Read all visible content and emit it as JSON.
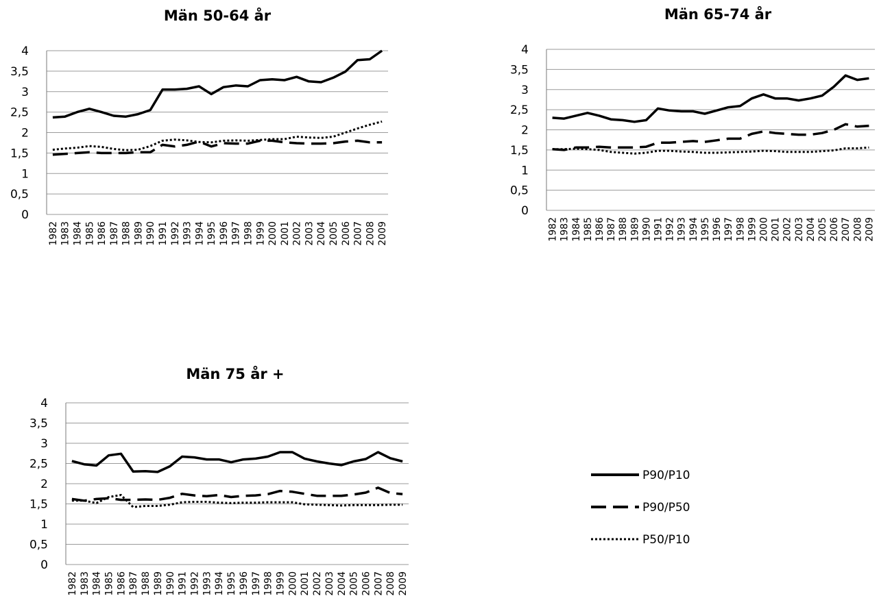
{
  "chart_data": [
    {
      "type": "line",
      "title": "Män 50-64 år",
      "x": [
        "1982",
        "1983",
        "1984",
        "1985",
        "1986",
        "1987",
        "1988",
        "1989",
        "1990",
        "1991",
        "1992",
        "1993",
        "1994",
        "1995",
        "1996",
        "1997",
        "1998",
        "1999",
        "2000",
        "2001",
        "2002",
        "2003",
        "2004",
        "2005",
        "2006",
        "2007",
        "2008",
        "2009"
      ],
      "y_ticks": [
        "0",
        "0,5",
        "1",
        "1,5",
        "2",
        "2,5",
        "3",
        "3,5",
        "4"
      ],
      "ylim": [
        0,
        4
      ],
      "grid": true,
      "series": [
        {
          "name": "P90/P10",
          "values": [
            2.37,
            2.39,
            2.5,
            2.58,
            2.5,
            2.41,
            2.39,
            2.45,
            2.55,
            3.05,
            3.05,
            3.07,
            3.13,
            2.94,
            3.11,
            3.15,
            3.13,
            3.28,
            3.3,
            3.28,
            3.36,
            3.25,
            3.23,
            3.34,
            3.49,
            3.77,
            3.79,
            4.0
          ]
        },
        {
          "name": "P90/P50",
          "values": [
            1.46,
            1.48,
            1.5,
            1.52,
            1.5,
            1.5,
            1.5,
            1.52,
            1.52,
            1.7,
            1.66,
            1.7,
            1.78,
            1.66,
            1.74,
            1.73,
            1.73,
            1.8,
            1.8,
            1.76,
            1.74,
            1.73,
            1.73,
            1.74,
            1.78,
            1.8,
            1.76,
            1.76
          ]
        },
        {
          "name": "P50/P10",
          "values": [
            1.58,
            1.61,
            1.63,
            1.67,
            1.65,
            1.6,
            1.57,
            1.58,
            1.67,
            1.8,
            1.83,
            1.81,
            1.77,
            1.76,
            1.8,
            1.81,
            1.8,
            1.82,
            1.84,
            1.84,
            1.9,
            1.88,
            1.87,
            1.9,
            2.0,
            2.1,
            2.19,
            2.27
          ]
        }
      ]
    },
    {
      "type": "line",
      "title": "Män 65-74 år",
      "x": [
        "1982",
        "1983",
        "1984",
        "1985",
        "1986",
        "1987",
        "1988",
        "1989",
        "1990",
        "1991",
        "1992",
        "1993",
        "1994",
        "1995",
        "1996",
        "1997",
        "1998",
        "1999",
        "2000",
        "2001",
        "2002",
        "2003",
        "2004",
        "2005",
        "2006",
        "2007",
        "2008",
        "2009"
      ],
      "y_ticks": [
        "0",
        "0,5",
        "1",
        "1,5",
        "2",
        "2,5",
        "3",
        "3,5",
        "4"
      ],
      "ylim": [
        0,
        4
      ],
      "grid": true,
      "series": [
        {
          "name": "P90/P10",
          "values": [
            2.3,
            2.28,
            2.35,
            2.42,
            2.35,
            2.26,
            2.24,
            2.2,
            2.24,
            2.53,
            2.48,
            2.46,
            2.46,
            2.4,
            2.48,
            2.56,
            2.59,
            2.78,
            2.88,
            2.78,
            2.78,
            2.73,
            2.78,
            2.85,
            3.07,
            3.35,
            3.24,
            3.28
          ]
        },
        {
          "name": "P90/P50",
          "values": [
            1.52,
            1.5,
            1.56,
            1.56,
            1.58,
            1.56,
            1.56,
            1.56,
            1.58,
            1.68,
            1.68,
            1.7,
            1.72,
            1.7,
            1.74,
            1.78,
            1.78,
            1.9,
            1.96,
            1.92,
            1.9,
            1.88,
            1.88,
            1.92,
            2.0,
            2.14,
            2.08,
            2.1
          ]
        },
        {
          "name": "P50/P10",
          "values": [
            1.52,
            1.52,
            1.53,
            1.52,
            1.5,
            1.45,
            1.43,
            1.41,
            1.43,
            1.48,
            1.48,
            1.46,
            1.45,
            1.43,
            1.43,
            1.44,
            1.45,
            1.46,
            1.48,
            1.47,
            1.45,
            1.45,
            1.45,
            1.47,
            1.49,
            1.54,
            1.54,
            1.56
          ]
        }
      ]
    },
    {
      "type": "line",
      "title": "Män 75 år +",
      "x": [
        "1982",
        "1983",
        "1984",
        "1985",
        "1986",
        "1987",
        "1988",
        "1989",
        "1990",
        "1991",
        "1992",
        "1993",
        "1994",
        "1995",
        "1996",
        "1997",
        "1998",
        "1999",
        "2000",
        "2001",
        "2002",
        "2003",
        "2004",
        "2005",
        "2006",
        "2007",
        "2008",
        "2009"
      ],
      "y_ticks": [
        "0",
        "0,5",
        "1",
        "1,5",
        "2",
        "2,5",
        "3",
        "3,5",
        "4"
      ],
      "ylim": [
        0,
        4
      ],
      "grid": true,
      "series": [
        {
          "name": "P90/P10",
          "values": [
            2.56,
            2.48,
            2.45,
            2.7,
            2.74,
            2.3,
            2.31,
            2.29,
            2.43,
            2.67,
            2.65,
            2.6,
            2.6,
            2.53,
            2.6,
            2.62,
            2.67,
            2.78,
            2.78,
            2.62,
            2.55,
            2.5,
            2.46,
            2.55,
            2.61,
            2.78,
            2.63,
            2.55
          ]
        },
        {
          "name": "P90/P50",
          "values": [
            1.62,
            1.58,
            1.62,
            1.64,
            1.6,
            1.6,
            1.61,
            1.6,
            1.65,
            1.75,
            1.71,
            1.69,
            1.72,
            1.67,
            1.7,
            1.71,
            1.74,
            1.82,
            1.8,
            1.75,
            1.7,
            1.7,
            1.7,
            1.73,
            1.78,
            1.9,
            1.77,
            1.74
          ]
        },
        {
          "name": "P50/P10",
          "values": [
            1.58,
            1.58,
            1.52,
            1.67,
            1.72,
            1.42,
            1.45,
            1.45,
            1.48,
            1.54,
            1.55,
            1.55,
            1.53,
            1.52,
            1.53,
            1.53,
            1.54,
            1.54,
            1.54,
            1.49,
            1.48,
            1.47,
            1.46,
            1.47,
            1.47,
            1.47,
            1.48,
            1.48
          ]
        }
      ]
    }
  ],
  "legend": {
    "placement": "bottom-right",
    "entries": [
      {
        "label": "P90/P10",
        "style": "solid"
      },
      {
        "label": "P90/P50",
        "style": "dashed"
      },
      {
        "label": "P50/P10",
        "style": "dotted"
      }
    ]
  },
  "colors": {
    "line": "#000000",
    "grid": "#9a9a9a",
    "background": "#ffffff"
  }
}
